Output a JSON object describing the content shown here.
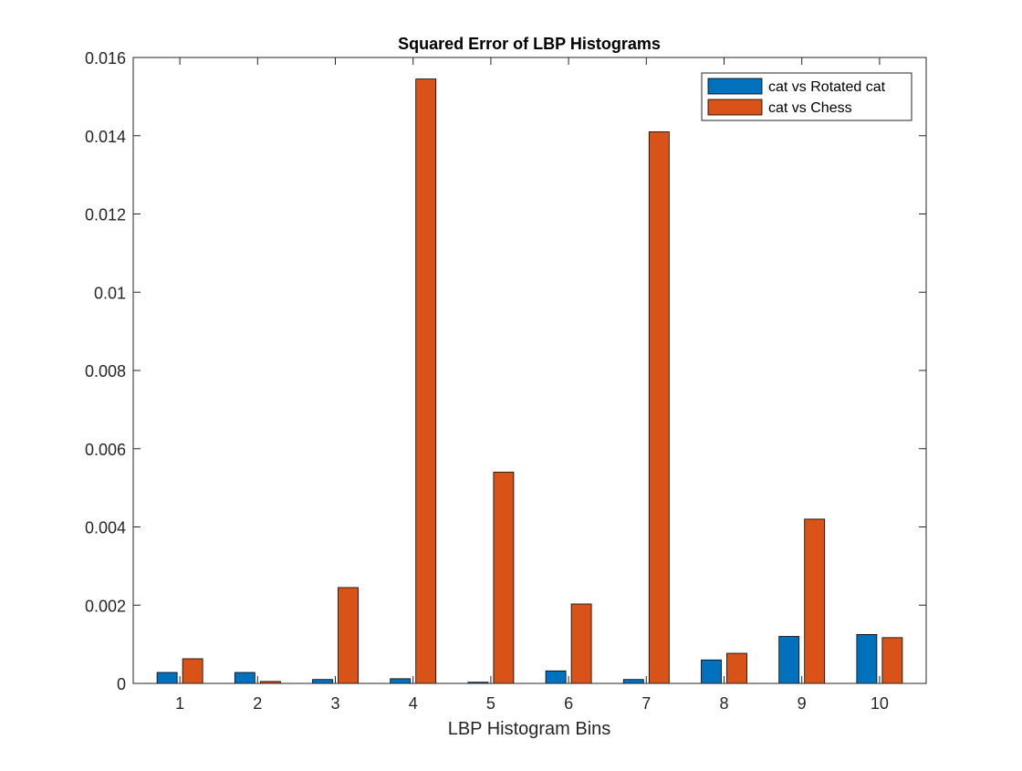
{
  "chart_data": {
    "type": "bar",
    "title": "Squared Error of LBP Histograms",
    "xlabel": "LBP Histogram Bins",
    "ylabel": "",
    "categories": [
      "1",
      "2",
      "3",
      "4",
      "5",
      "6",
      "7",
      "8",
      "9",
      "10"
    ],
    "ylim": [
      0,
      0.016
    ],
    "yticks": [
      0,
      0.002,
      0.004,
      0.006,
      0.008,
      0.01,
      0.012,
      0.014,
      0.016
    ],
    "ytick_labels": [
      "0",
      "0.002",
      "0.004",
      "0.006",
      "0.008",
      "0.01",
      "0.012",
      "0.014",
      "0.016"
    ],
    "grid": false,
    "legend_position": "top-right",
    "series": [
      {
        "name": "cat vs Rotated cat",
        "color": "#0072BD",
        "values": [
          0.00028,
          0.00028,
          0.0001,
          0.00012,
          3e-05,
          0.00032,
          0.0001,
          0.0006,
          0.0012,
          0.00125
        ]
      },
      {
        "name": "cat vs Chess",
        "color": "#D95319",
        "values": [
          0.00063,
          5e-05,
          0.00245,
          0.01545,
          0.0054,
          0.00203,
          0.0141,
          0.00077,
          0.0042,
          0.00117
        ]
      }
    ]
  }
}
